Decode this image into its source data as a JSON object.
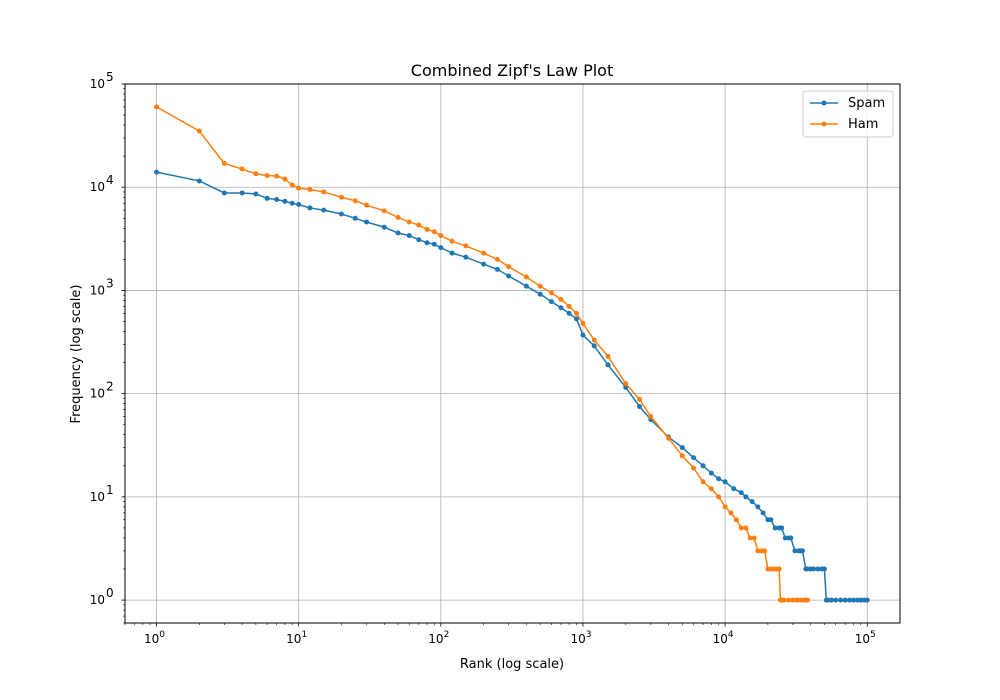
{
  "chart_data": {
    "type": "line",
    "title": "Combined Zipf's Law Plot",
    "xlabel": "Rank (log scale)",
    "ylabel": "Frequency (log scale)",
    "xscale": "log",
    "yscale": "log",
    "xlim": [
      0.6,
      170000
    ],
    "ylim": [
      0.6,
      100000
    ],
    "grid": true,
    "legend_position": "top-right",
    "x_ticks": [
      {
        "value": 1,
        "mantissa": "10",
        "exp": "0"
      },
      {
        "value": 10,
        "mantissa": "10",
        "exp": "1"
      },
      {
        "value": 100,
        "mantissa": "10",
        "exp": "2"
      },
      {
        "value": 1000,
        "mantissa": "10",
        "exp": "3"
      },
      {
        "value": 10000,
        "mantissa": "10",
        "exp": "4"
      },
      {
        "value": 100000,
        "mantissa": "10",
        "exp": "5"
      }
    ],
    "y_ticks": [
      {
        "value": 1,
        "mantissa": "10",
        "exp": "0"
      },
      {
        "value": 10,
        "mantissa": "10",
        "exp": "1"
      },
      {
        "value": 100,
        "mantissa": "10",
        "exp": "2"
      },
      {
        "value": 1000,
        "mantissa": "10",
        "exp": "3"
      },
      {
        "value": 10000,
        "mantissa": "10",
        "exp": "4"
      },
      {
        "value": 100000,
        "mantissa": "10",
        "exp": "5"
      }
    ],
    "series": [
      {
        "name": "Spam",
        "color": "#1f77b4",
        "x": [
          1,
          2,
          3,
          4,
          5,
          6,
          7,
          8,
          9,
          10,
          12,
          15,
          20,
          25,
          30,
          40,
          50,
          60,
          70,
          80,
          90,
          100,
          120,
          150,
          200,
          250,
          300,
          400,
          500,
          600,
          700,
          800,
          900,
          1000,
          1200,
          1500,
          2000,
          2500,
          3000,
          4000,
          5000,
          6000,
          7000,
          8000,
          9000,
          10000,
          11500,
          13000,
          14000,
          15500,
          17000,
          18500,
          20000,
          21000,
          22500,
          24000,
          25000,
          26500,
          28000,
          29000,
          31000,
          33000,
          34000,
          35000,
          37000,
          38000,
          40000,
          42000,
          45000,
          48000,
          50000,
          51500,
          53000,
          56000,
          60000,
          65000,
          70000,
          75000,
          80000,
          85000,
          90000,
          95000,
          100000
        ],
        "y": [
          14000,
          11500,
          8800,
          8800,
          8600,
          7800,
          7600,
          7300,
          7000,
          6800,
          6300,
          6000,
          5500,
          5000,
          4600,
          4100,
          3600,
          3400,
          3100,
          2900,
          2800,
          2600,
          2300,
          2100,
          1800,
          1600,
          1380,
          1100,
          920,
          780,
          680,
          600,
          530,
          370,
          290,
          190,
          115,
          75,
          56,
          38,
          30,
          24,
          20,
          17,
          15,
          14,
          12,
          11,
          10,
          9,
          8,
          7,
          6,
          6,
          5,
          5,
          5,
          4,
          4,
          4,
          3,
          3,
          3,
          3,
          2,
          2,
          2,
          2,
          2,
          2,
          2,
          1,
          1,
          1,
          1,
          1,
          1,
          1,
          1,
          1,
          1,
          1,
          1
        ]
      },
      {
        "name": "Ham",
        "color": "#ff7f0e",
        "x": [
          1,
          2,
          3,
          4,
          5,
          6,
          7,
          8,
          9,
          10,
          12,
          15,
          20,
          25,
          30,
          40,
          50,
          60,
          70,
          80,
          90,
          100,
          120,
          150,
          200,
          250,
          300,
          400,
          500,
          600,
          700,
          800,
          900,
          1000,
          1200,
          1500,
          2000,
          2500,
          3000,
          4000,
          5000,
          6000,
          7000,
          8000,
          9000,
          10000,
          11000,
          12000,
          13000,
          14000,
          15000,
          16000,
          17000,
          18000,
          19000,
          20000,
          21000,
          22000,
          23000,
          24000,
          24500,
          25000,
          26000,
          28000,
          30000,
          32000,
          34000,
          36000,
          37000,
          38000
        ],
        "y": [
          60000,
          35000,
          17000,
          15000,
          13500,
          13000,
          12800,
          12000,
          10500,
          9800,
          9500,
          9000,
          8000,
          7400,
          6700,
          5900,
          5100,
          4600,
          4300,
          3900,
          3700,
          3400,
          3000,
          2700,
          2300,
          2000,
          1700,
          1350,
          1100,
          950,
          820,
          700,
          600,
          480,
          330,
          230,
          125,
          88,
          60,
          37,
          25,
          19,
          14,
          12,
          10,
          8,
          7,
          6,
          5,
          5,
          4,
          4,
          3,
          3,
          3,
          2,
          2,
          2,
          2,
          2,
          1,
          1,
          1,
          1,
          1,
          1,
          1,
          1,
          1,
          1
        ]
      }
    ]
  }
}
